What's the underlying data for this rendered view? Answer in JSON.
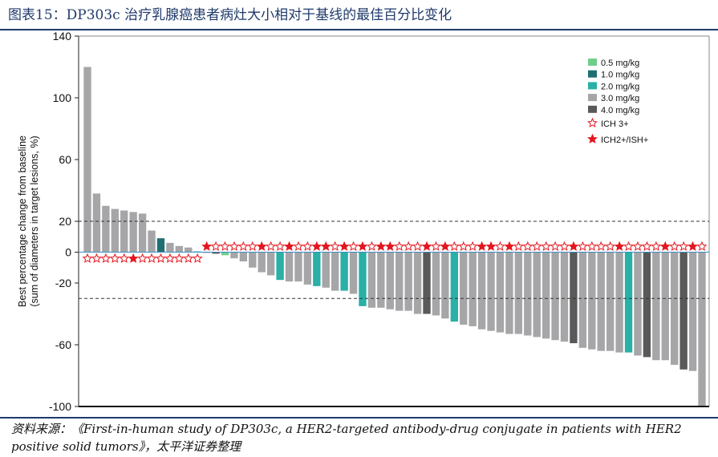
{
  "header": {
    "title": "图表15：DP303c 治疗乳腺癌患者病灶大小相对于基线的最佳百分比变化"
  },
  "source": {
    "text": "资料来源：《First-in-human study of DP303c, a HER2-targeted antibody-drug conjugate in patients with HER2 positive solid tumors》，太平洋证券整理"
  },
  "colors": {
    "0.5 mg/kg": "#6fcf8a",
    "1.0 mg/kg": "#1f6f72",
    "2.0 mg/kg": "#2ab0a6",
    "3.0 mg/kg": "#a6a6a8",
    "4.0 mg/kg": "#595959",
    "star_red": "#e4161e"
  },
  "chart_data": {
    "type": "bar",
    "ylabel": "Best percentage change from baseline\n(sum of diameters in target lesions, %)",
    "ylim": [
      -100,
      140
    ],
    "yticks": [
      140,
      100,
      60,
      20,
      0,
      -20,
      -60,
      -100
    ],
    "reference_lines": [
      20,
      0,
      -30
    ],
    "legend": [
      {
        "label": "0.5 mg/kg",
        "kind": "swatch"
      },
      {
        "label": "1.0 mg/kg",
        "kind": "swatch"
      },
      {
        "label": "2.0 mg/kg",
        "kind": "swatch"
      },
      {
        "label": "3.0 mg/kg",
        "kind": "swatch"
      },
      {
        "label": "4.0 mg/kg",
        "kind": "swatch"
      },
      {
        "label": "ICH 3+",
        "kind": "star-open"
      },
      {
        "label": "ICH2+/ISH+",
        "kind": "star-filled"
      }
    ],
    "legend_position": "top-right",
    "values": [
      120,
      38,
      30,
      28,
      27,
      26,
      25,
      14,
      9,
      6,
      4,
      3,
      0.5,
      -0.5,
      -1,
      -2,
      -4,
      -6,
      -10,
      -13,
      -15,
      -18,
      -19,
      -19,
      -21,
      -22,
      -23,
      -25,
      -25,
      -27,
      -35,
      -36,
      -36,
      -37,
      -38,
      -38,
      -40,
      -40,
      -41,
      -43,
      -45,
      -47,
      -48,
      -50,
      -51,
      -52,
      -53,
      -53,
      -54,
      -55,
      -56,
      -57,
      -58,
      -59,
      -62,
      -63,
      -64,
      -64,
      -65,
      -65,
      -67,
      -68,
      -70,
      -70,
      -73,
      -76,
      -77,
      -100
    ],
    "doses": [
      "3.0",
      "3.0",
      "3.0",
      "3.0",
      "3.0",
      "3.0",
      "3.0",
      "3.0",
      "1.0",
      "3.0",
      "3.0",
      "3.0",
      "2.0",
      "3.0",
      "4.0",
      "0.5",
      "3.0",
      "3.0",
      "3.0",
      "3.0",
      "3.0",
      "2.0",
      "3.0",
      "3.0",
      "3.0",
      "2.0",
      "3.0",
      "3.0",
      "2.0",
      "3.0",
      "2.0",
      "3.0",
      "3.0",
      "3.0",
      "3.0",
      "3.0",
      "3.0",
      "4.0",
      "3.0",
      "3.0",
      "2.0",
      "3.0",
      "3.0",
      "3.0",
      "3.0",
      "3.0",
      "3.0",
      "3.0",
      "3.0",
      "3.0",
      "3.0",
      "3.0",
      "3.0",
      "4.0",
      "3.0",
      "3.0",
      "3.0",
      "3.0",
      "3.0",
      "2.0",
      "3.0",
      "4.0",
      "3.0",
      "3.0",
      "3.0",
      "4.0",
      "3.0",
      "3.0"
    ],
    "markers": [
      "o",
      "o",
      "o",
      "o",
      "o",
      "f",
      "o",
      "o",
      "o",
      "o",
      "o",
      "o",
      "o",
      "f",
      "o",
      "o",
      "o",
      "o",
      "o",
      "f",
      "o",
      "o",
      "f",
      "o",
      "o",
      "f",
      "f",
      "o",
      "f",
      "o",
      "f",
      "o",
      "f",
      "f",
      "o",
      "o",
      "o",
      "f",
      "o",
      "f",
      "o",
      "o",
      "o",
      "f",
      "f",
      "o",
      "f",
      "o",
      "o",
      "o",
      "o",
      "o",
      "o",
      "f",
      "o",
      "o",
      "o",
      "o",
      "f",
      "o",
      "o",
      "o",
      "o",
      "f",
      "o",
      "o",
      "f",
      "o"
    ]
  }
}
